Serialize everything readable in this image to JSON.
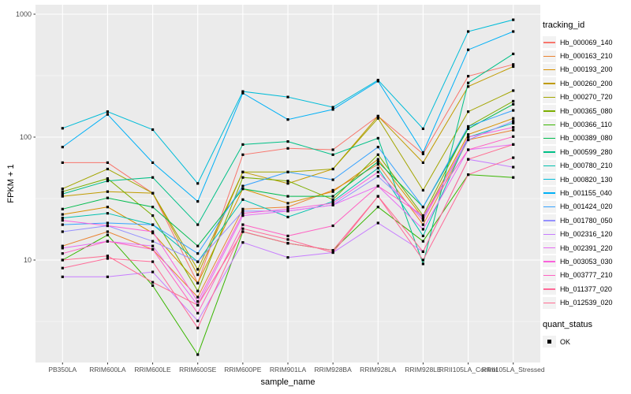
{
  "chart_data": {
    "type": "line",
    "title": "",
    "xlabel": "sample_name",
    "ylabel": "FPKM + 1",
    "y_scale": "log10",
    "ylim": [
      1.5,
      1200
    ],
    "y_ticks": [
      10,
      100,
      1000
    ],
    "y_tick_labels": [
      "10",
      "100",
      "1000"
    ],
    "y_minor_ticks": [
      3.162,
      31.62,
      316.2
    ],
    "grid": true,
    "legend_position": "right",
    "point": {
      "shape": "square",
      "color": "#000000",
      "size": 3.2,
      "meaning": "quant_status OK"
    },
    "categories": [
      "PB350LA",
      "RRIM600LA",
      "RRIM600LE",
      "RRIM600SE",
      "RRIM600PE",
      "RRIM901LA",
      "RRIM928BA",
      "RRIM928LA",
      "RRIM928LE",
      "RRII105LA_Control",
      "RRII105LA_Stressed"
    ],
    "series": [
      {
        "name": "Hb_000069_140",
        "color": "#F8766D",
        "values": [
          62,
          62,
          35,
          6.5,
          72,
          81,
          79,
          148,
          73,
          313,
          390
        ]
      },
      {
        "name": "Hb_000163_210",
        "color": "#EA8331",
        "values": [
          13,
          17,
          12.2,
          5.0,
          26,
          27,
          37,
          60,
          19.4,
          95,
          114
        ]
      },
      {
        "name": "Hb_000193_200",
        "color": "#D89000",
        "values": [
          23.5,
          27,
          16.6,
          6.5,
          38,
          29,
          36,
          66,
          22,
          105,
          142
        ]
      },
      {
        "name": "Hb_000260_200",
        "color": "#C09B00",
        "values": [
          33,
          36,
          35,
          7.6,
          52,
          42,
          55,
          148,
          62,
          258,
          375
        ]
      },
      {
        "name": "Hb_000270_720",
        "color": "#A3A500",
        "values": [
          38,
          55,
          35,
          8.4,
          52,
          52,
          55,
          142,
          37,
          161,
          239
        ]
      },
      {
        "name": "Hb_000365_080",
        "color": "#7CAE00",
        "values": [
          36,
          46,
          23,
          5.6,
          47,
          44,
          31,
          72,
          23,
          122,
          196
        ]
      },
      {
        "name": "Hb_000366_110",
        "color": "#39B600",
        "values": [
          10,
          16,
          6.2,
          1.7,
          17,
          13.7,
          12,
          27,
          14.2,
          49.5,
          47
        ]
      },
      {
        "name": "Hb_000389_080",
        "color": "#00BB4E",
        "values": [
          26,
          32,
          27,
          13,
          38,
          33,
          33,
          63,
          27,
          117,
          185
        ]
      },
      {
        "name": "Hb_000599_280",
        "color": "#00C087",
        "values": [
          34.5,
          44,
          47,
          19.4,
          87,
          92,
          72,
          98,
          9.3,
          276,
          475
        ]
      },
      {
        "name": "Hb_000780_210",
        "color": "#00C0AF",
        "values": [
          22,
          24,
          19.4,
          9.7,
          31,
          22.4,
          30,
          56,
          15.7,
          100,
          130
        ]
      },
      {
        "name": "Hb_000820_130",
        "color": "#00BCD8",
        "values": [
          118,
          161,
          115,
          42,
          235,
          212,
          175,
          291,
          117,
          723,
          901
        ]
      },
      {
        "name": "Hb_001155_040",
        "color": "#00B0F6",
        "values": [
          83,
          153,
          62,
          30,
          228,
          139,
          168,
          285,
          75,
          513,
          723
        ]
      },
      {
        "name": "Hb_001424_020",
        "color": "#35A2FF",
        "values": [
          19.4,
          20,
          19.4,
          11.3,
          40,
          52,
          45,
          83,
          27,
          122,
          165
        ]
      },
      {
        "name": "Hb_001780_050",
        "color": "#9590FF",
        "values": [
          17,
          19,
          14.2,
          9.7,
          25,
          25,
          28,
          48,
          22,
          95,
          135
        ]
      },
      {
        "name": "Hb_002316_120",
        "color": "#C77CFF",
        "values": [
          7.3,
          7.3,
          8,
          3.2,
          13.9,
          10.5,
          11.5,
          20,
          11.7,
          66,
          57
        ]
      },
      {
        "name": "Hb_002391_220",
        "color": "#E76BF3",
        "values": [
          12.5,
          14.2,
          13,
          4.3,
          23,
          25,
          28,
          40,
          17.8,
          79,
          87
        ]
      },
      {
        "name": "Hb_003053_030",
        "color": "#FA62DB",
        "values": [
          21,
          19,
          17,
          4.6,
          24,
          26,
          29,
          52,
          21,
          100,
          120
        ]
      },
      {
        "name": "Hb_003777_210",
        "color": "#FF61C3",
        "values": [
          11.3,
          14.2,
          12.2,
          3.7,
          19.4,
          15.7,
          19,
          40,
          23,
          79,
          101
        ]
      },
      {
        "name": "Hb_011377_020",
        "color": "#FF6A98",
        "values": [
          8.6,
          10.3,
          9.7,
          2.8,
          18,
          14.7,
          11.5,
          33,
          10,
          49.5,
          68
        ]
      },
      {
        "name": "Hb_012539_020",
        "color": "#FF6C91",
        "values": [
          10,
          10.8,
          6.6,
          4.3,
          17,
          13.7,
          12,
          33,
          11.7,
          66,
          87
        ]
      }
    ]
  },
  "legend": {
    "tracking_title": "tracking_id",
    "quant_title": "quant_status",
    "quant_items": [
      {
        "label": "OK",
        "marker": "black-square"
      }
    ]
  },
  "colors": {
    "panel_bg": "#EBEBEB",
    "grid": "#FFFFFF",
    "legend_key_bg": "#F2F2F2",
    "tick_label": "#4D4D4D",
    "tick_mark": "#333333",
    "title_text": "#000000",
    "point": "#000000"
  }
}
